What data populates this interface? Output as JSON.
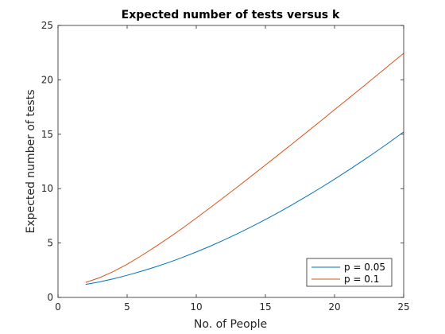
{
  "chart_data": {
    "type": "line",
    "title": "Expected number of tests versus k",
    "xlabel": "No. of People",
    "ylabel": "Expected number of tests",
    "xlim": [
      0,
      25
    ],
    "ylim": [
      0,
      25
    ],
    "xticks": [
      "0",
      "5",
      "10",
      "15",
      "20",
      "25"
    ],
    "yticks": [
      "0",
      "5",
      "10",
      "15",
      "20",
      "25"
    ],
    "grid": false,
    "legend_position": "bottom-right",
    "x": [
      2,
      3,
      4,
      5,
      6,
      7,
      8,
      9,
      10,
      11,
      12,
      13,
      14,
      15,
      16,
      17,
      18,
      19,
      20,
      21,
      22,
      23,
      24,
      25
    ],
    "series": [
      {
        "name": "p = 0.05",
        "color": "#0072BD",
        "values": [
          1.195,
          1.429,
          1.709,
          2.032,
          2.391,
          2.784,
          3.213,
          3.678,
          4.175,
          4.705,
          5.274,
          5.872,
          6.5,
          7.157,
          7.846,
          8.57,
          9.309,
          10.078,
          10.868,
          11.69,
          12.53,
          13.396,
          14.292,
          15.216
        ]
      },
      {
        "name": "p = 0.1",
        "color": "#D95319",
        "values": [
          1.38,
          1.81,
          2.38,
          3.05,
          3.81,
          4.63,
          5.48,
          6.36,
          7.29,
          8.24,
          9.21,
          10.18,
          11.17,
          12.17,
          13.17,
          14.18,
          15.2,
          16.22,
          17.26,
          18.28,
          19.31,
          20.36,
          21.4,
          22.44
        ]
      }
    ]
  }
}
